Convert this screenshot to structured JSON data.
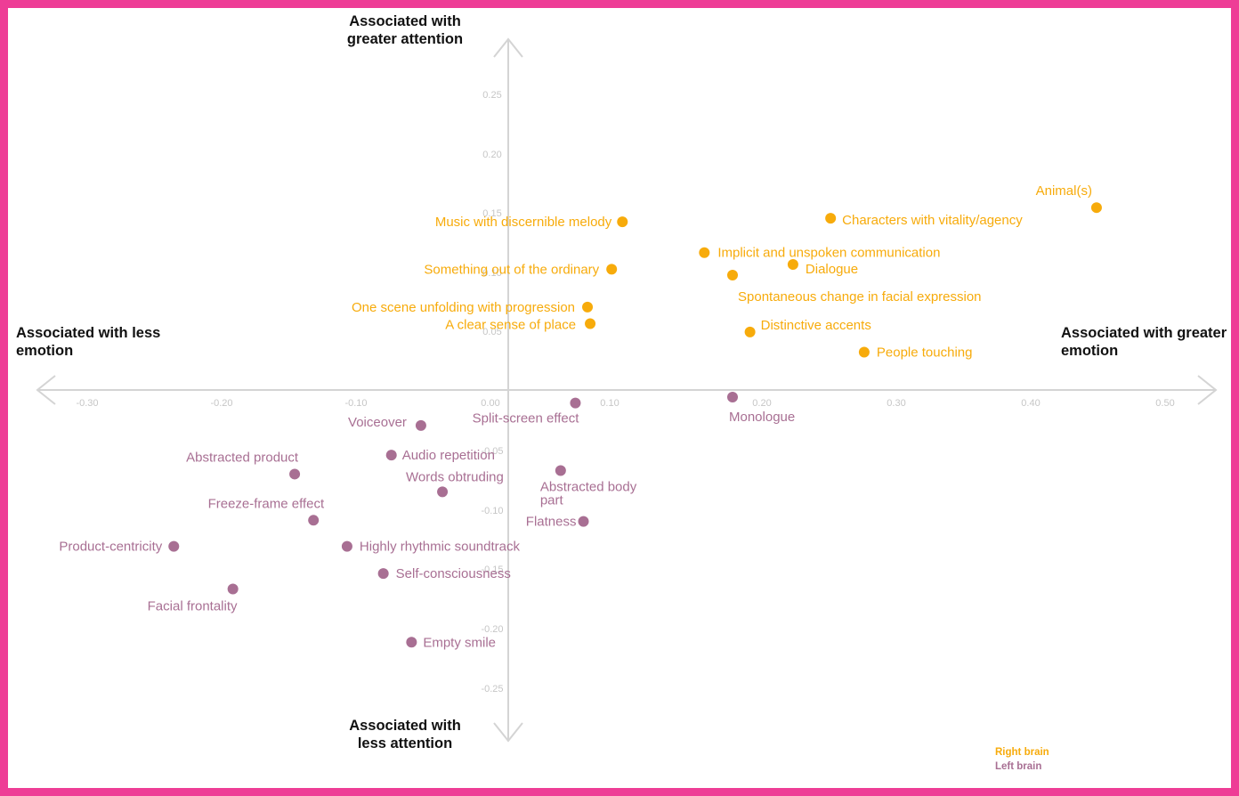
{
  "chart_data": {
    "type": "scatter",
    "x_ticks": [
      "-0.30",
      "-0.20",
      "-0.10",
      "0.00",
      "0.10",
      "0.20",
      "0.30",
      "0.40",
      "0.50"
    ],
    "y_ticks": [
      "0.25",
      "0.20",
      "0.15",
      "0.10",
      "0.05",
      "-0.05",
      "-0.10",
      "-0.15",
      "-0.20",
      "-0.25"
    ],
    "axis_titles": {
      "top": "Associated with greater attention",
      "bottom": "Associated with less attention",
      "left": "Associated with less emotion",
      "right": "Associated with greater emotion"
    },
    "series": [
      {
        "name": "Right brain",
        "color": "#f7ab0b",
        "points": [
          {
            "x": 0.085,
            "y": 0.145,
            "label": "Music with discernible melody"
          },
          {
            "x": 0.077,
            "y": 0.105,
            "label": "Something out of the ordinary"
          },
          {
            "x": 0.059,
            "y": 0.073,
            "label": "One scene unfolding with progression"
          },
          {
            "x": 0.061,
            "y": 0.059,
            "label": "A clear sense of place"
          },
          {
            "x": 0.24,
            "y": 0.148,
            "label": "Characters with vitality/agency"
          },
          {
            "x": 0.438,
            "y": 0.157,
            "label": "Animal(s)"
          },
          {
            "x": 0.146,
            "y": 0.119,
            "label": "Implicit and unspoken communication"
          },
          {
            "x": 0.212,
            "y": 0.109,
            "label": "Dialogue"
          },
          {
            "x": 0.167,
            "y": 0.1,
            "label": "Spontaneous change in facial expression"
          },
          {
            "x": 0.18,
            "y": 0.052,
            "label": "Distinctive accents"
          },
          {
            "x": 0.265,
            "y": 0.035,
            "label": "People touching"
          }
        ]
      },
      {
        "name": "Left brain",
        "color": "#a86f93",
        "points": [
          {
            "x": 0.05,
            "y": -0.008,
            "label": "Split-screen effect"
          },
          {
            "x": 0.167,
            "y": -0.003,
            "label": "Monologue"
          },
          {
            "x": -0.065,
            "y": -0.027,
            "label": "Voiceover"
          },
          {
            "x": -0.087,
            "y": -0.052,
            "label": "Audio repetition"
          },
          {
            "x": -0.159,
            "y": -0.068,
            "label": "Abstracted product"
          },
          {
            "x": 0.039,
            "y": -0.065,
            "label": "Abstracted body part"
          },
          {
            "x": -0.049,
            "y": -0.083,
            "label": "Words obtruding"
          },
          {
            "x": -0.145,
            "y": -0.107,
            "label": "Freeze-frame effect"
          },
          {
            "x": 0.056,
            "y": -0.108,
            "label": "Flatness"
          },
          {
            "x": -0.249,
            "y": -0.129,
            "label": "Product-centricity"
          },
          {
            "x": -0.12,
            "y": -0.129,
            "label": "Highly rhythmic soundtrack"
          },
          {
            "x": -0.093,
            "y": -0.152,
            "label": "Self-consciousness"
          },
          {
            "x": -0.205,
            "y": -0.165,
            "label": "Facial frontality"
          },
          {
            "x": -0.072,
            "y": -0.21,
            "label": "Empty smile"
          }
        ]
      }
    ],
    "xlim": [
      -0.33,
      0.55
    ],
    "ylim": [
      -0.28,
      0.3
    ],
    "grid": false,
    "legend": "bottom-right"
  }
}
